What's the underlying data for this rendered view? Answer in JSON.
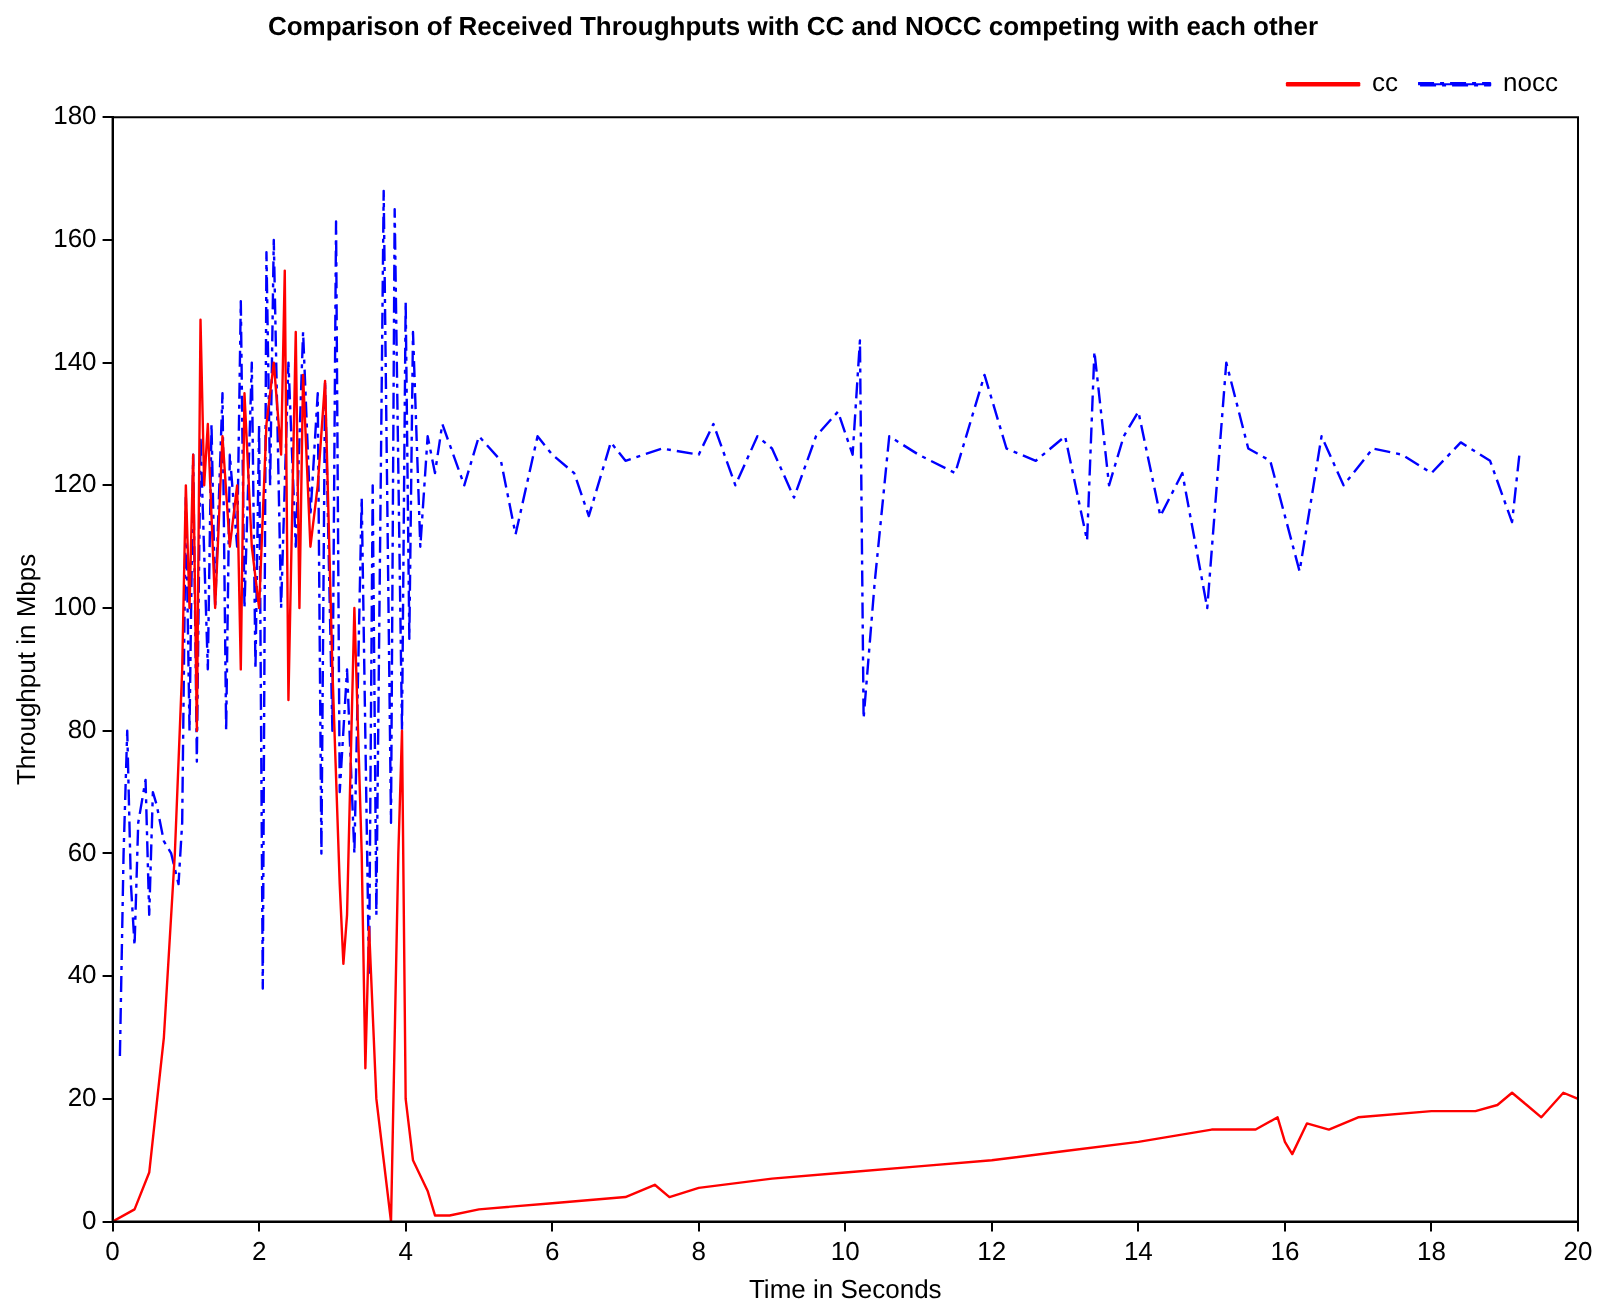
{
  "chart_data": {
    "type": "line",
    "title": "Comparison of Received Throughputs with CC and NOCC competing with each other",
    "xlabel": "Time in Seconds",
    "ylabel": "Throughput in Mbps",
    "xlim": [
      0,
      20
    ],
    "xticks": [
      0,
      2,
      4,
      6,
      8,
      10,
      12,
      14,
      16,
      18,
      20
    ],
    "ylim": [
      0,
      180
    ],
    "yticks": [
      0,
      20,
      40,
      60,
      80,
      100,
      120,
      140,
      160,
      180
    ],
    "grid": false,
    "legend": "top right",
    "marker": "none",
    "series": [
      {
        "name": "cc",
        "color": "#ff0000",
        "line_style": "solid",
        "x": [
          0,
          0.3,
          0.5,
          0.7,
          0.85,
          0.95,
          1.0,
          1.05,
          1.1,
          1.15,
          1.2,
          1.25,
          1.3,
          1.4,
          1.5,
          1.6,
          1.7,
          1.75,
          1.8,
          1.9,
          2.0,
          2.1,
          2.2,
          2.3,
          2.35,
          2.4,
          2.5,
          2.55,
          2.6,
          2.7,
          2.8,
          2.9,
          3.0,
          3.1,
          3.15,
          3.2,
          3.3,
          3.4,
          3.45,
          3.5,
          3.6,
          3.7,
          3.8,
          3.9,
          3.95,
          4.0,
          4.1,
          4.3,
          4.4,
          4.6,
          5,
          6,
          7,
          7.4,
          7.6,
          8,
          9,
          10,
          11,
          12,
          13,
          14,
          15,
          15.6,
          15.9,
          16.0,
          16.1,
          16.3,
          16.6,
          17,
          18,
          18.6,
          18.9,
          19.1,
          19.3,
          19.5,
          19.8,
          20
        ],
        "values": [
          0,
          2,
          8,
          30,
          60,
          90,
          120,
          100,
          125,
          80,
          147,
          120,
          130,
          100,
          128,
          110,
          120,
          90,
          135,
          110,
          100,
          130,
          140,
          125,
          155,
          85,
          145,
          100,
          138,
          110,
          120,
          137,
          90,
          55,
          42,
          50,
          100,
          60,
          25,
          48,
          20,
          10,
          0,
          60,
          80,
          20,
          10,
          5,
          1,
          1,
          2,
          3,
          4,
          6,
          4,
          5.5,
          7,
          8,
          9,
          10,
          11.5,
          13,
          15,
          15,
          17,
          13,
          11,
          16,
          15,
          17,
          18,
          18,
          19,
          21,
          19,
          17,
          21,
          20
        ]
      },
      {
        "name": "nocc",
        "color": "#0000ff",
        "line_style": "dashed",
        "x": [
          0.1,
          0.15,
          0.2,
          0.25,
          0.3,
          0.35,
          0.45,
          0.5,
          0.55,
          0.6,
          0.7,
          0.8,
          0.9,
          0.95,
          1.0,
          1.05,
          1.1,
          1.15,
          1.2,
          1.3,
          1.35,
          1.4,
          1.5,
          1.55,
          1.6,
          1.7,
          1.75,
          1.8,
          1.9,
          1.95,
          2.0,
          2.05,
          2.1,
          2.15,
          2.2,
          2.3,
          2.4,
          2.5,
          2.6,
          2.7,
          2.8,
          2.85,
          2.9,
          3.0,
          3.05,
          3.1,
          3.2,
          3.3,
          3.4,
          3.5,
          3.55,
          3.6,
          3.7,
          3.8,
          3.85,
          3.95,
          4.0,
          4.05,
          4.1,
          4.2,
          4.3,
          4.4,
          4.5,
          4.8,
          5.0,
          5.3,
          5.5,
          5.8,
          6.0,
          6.3,
          6.5,
          6.8,
          7.0,
          7.5,
          8.0,
          8.2,
          8.5,
          8.8,
          9.0,
          9.3,
          9.6,
          9.9,
          10.1,
          10.2,
          10.25,
          10.4,
          10.6,
          11.0,
          11.5,
          11.9,
          12.2,
          12.6,
          13.0,
          13.3,
          13.4,
          13.6,
          13.8,
          14.0,
          14.3,
          14.6,
          14.94,
          15.2,
          15.5,
          15.8,
          16.2,
          16.5,
          16.8,
          17.2,
          17.6,
          18.0,
          18.4,
          18.8,
          19.1,
          19.2
        ],
        "values": [
          27,
          60,
          80,
          55,
          45,
          65,
          72,
          50,
          70,
          68,
          62,
          60,
          55,
          65,
          118,
          80,
          125,
          75,
          128,
          90,
          130,
          100,
          135,
          80,
          125,
          110,
          150,
          100,
          140,
          90,
          130,
          38,
          158,
          120,
          160,
          100,
          140,
          110,
          145,
          115,
          135,
          60,
          137,
          80,
          163,
          70,
          90,
          60,
          118,
          40,
          120,
          50,
          168,
          65,
          165,
          80,
          150,
          95,
          145,
          110,
          128,
          122,
          130,
          120,
          128,
          124,
          112,
          128,
          125,
          122,
          115,
          127,
          124,
          126,
          125,
          130,
          120,
          128,
          126,
          118,
          128,
          132,
          125,
          143.6,
          82,
          104,
          128,
          125,
          122,
          138,
          126,
          124,
          128,
          111,
          141.8,
          120,
          128,
          132,
          115,
          122,
          100,
          140,
          126,
          124,
          106,
          128,
          120,
          126,
          125,
          122,
          127,
          124,
          114,
          125
        ]
      }
    ]
  }
}
